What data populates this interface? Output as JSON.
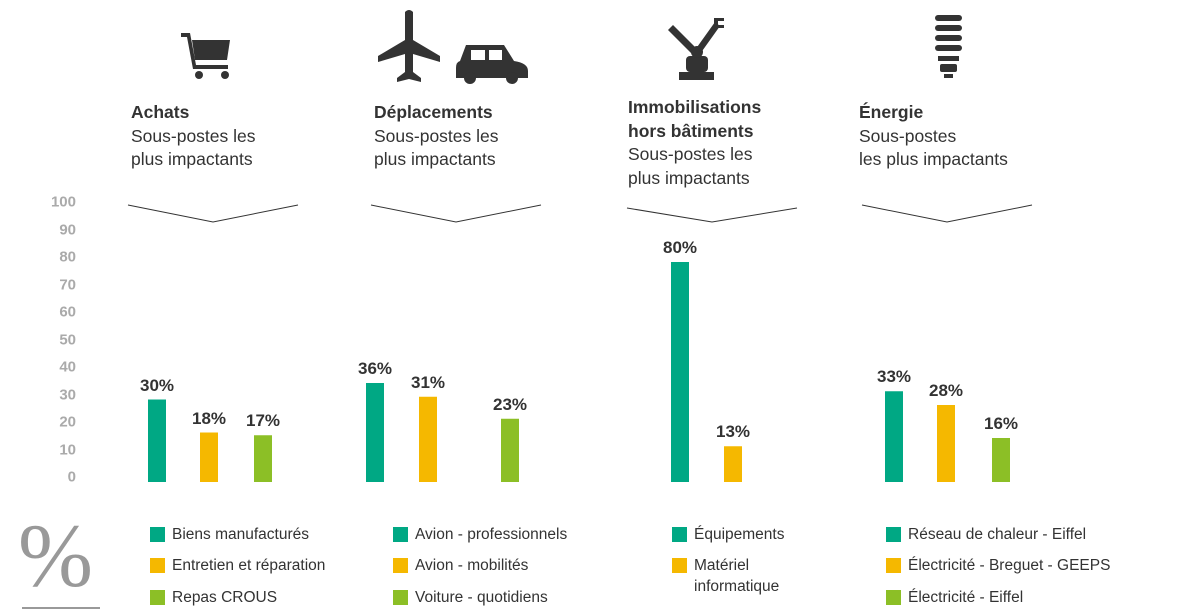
{
  "axis": {
    "label": "%",
    "ylim": [
      0,
      100
    ],
    "yticks": [
      0,
      10,
      20,
      30,
      40,
      50,
      60,
      70,
      80,
      90,
      100
    ]
  },
  "chart_data": [
    {
      "type": "bar",
      "title": [
        "Achats"
      ],
      "subtitle": [
        "Sous-postes les",
        "plus impactants"
      ],
      "categories": [
        "Biens manufacturés",
        "Entretien et réparation",
        "Repas CROUS"
      ],
      "values": [
        30,
        18,
        17
      ],
      "value_labels": [
        "30%",
        "18%",
        "17%"
      ],
      "colors": [
        "#00a884",
        "#f5b800",
        "#8cbf26"
      ]
    },
    {
      "type": "bar",
      "title": [
        "Déplacements"
      ],
      "subtitle": [
        "Sous-postes les",
        "plus impactants"
      ],
      "categories": [
        "Avion - professionnels",
        "Avion - mobilités",
        "Voiture - quotidiens"
      ],
      "values": [
        36,
        31,
        23
      ],
      "value_labels": [
        "36%",
        "31%",
        "23%"
      ],
      "colors": [
        "#00a884",
        "#f5b800",
        "#8cbf26"
      ]
    },
    {
      "type": "bar",
      "title": [
        "Immobilisations",
        "hors bâtiments"
      ],
      "subtitle": [
        "Sous-postes les",
        "plus impactants"
      ],
      "categories": [
        "Équipements",
        "Matériel informatique"
      ],
      "values": [
        80,
        13
      ],
      "value_labels": [
        "80%",
        "13%"
      ],
      "colors": [
        "#00a884",
        "#f5b800"
      ]
    },
    {
      "type": "bar",
      "title": [
        "Énergie"
      ],
      "subtitle": [
        "Sous-postes",
        "les plus impactants"
      ],
      "categories": [
        "Réseau de chaleur - Eiffel",
        "Électricité - Breguet - GEEPS",
        "Électricité - Eiffel"
      ],
      "values": [
        33,
        28,
        16
      ],
      "value_labels": [
        "33%",
        "28%",
        "16%"
      ],
      "colors": [
        "#00a884",
        "#f5b800",
        "#8cbf26"
      ]
    }
  ]
}
